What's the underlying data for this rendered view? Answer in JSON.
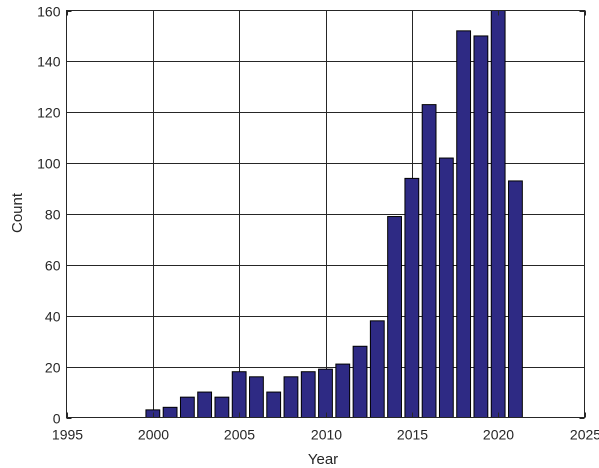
{
  "chart_data": {
    "type": "bar",
    "title": "",
    "xlabel": "Year",
    "ylabel": "Count",
    "xlim": [
      1995,
      2025
    ],
    "ylim": [
      0,
      160
    ],
    "xticks": [
      1995,
      2000,
      2005,
      2010,
      2015,
      2020,
      2025
    ],
    "yticks": [
      0,
      20,
      40,
      60,
      80,
      100,
      120,
      140,
      160
    ],
    "grid": true,
    "bar_color": "#2e2a84",
    "x": [
      2000,
      2001,
      2002,
      2003,
      2004,
      2005,
      2006,
      2007,
      2008,
      2009,
      2010,
      2011,
      2012,
      2013,
      2014,
      2015,
      2016,
      2017,
      2018,
      2019,
      2020,
      2021
    ],
    "values": [
      3,
      4,
      8,
      10,
      8,
      18,
      16,
      10,
      16,
      18,
      19,
      21,
      28,
      38,
      79,
      94,
      123,
      102,
      152,
      150,
      160,
      93
    ]
  }
}
